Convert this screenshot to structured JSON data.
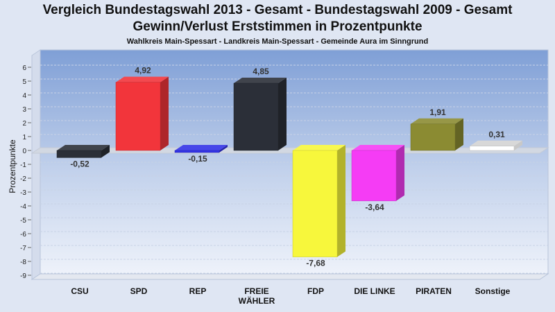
{
  "title_line1": "Vergleich Bundestagswahl 2013 - Gesamt - Bundestagswahl 2009 - Gesamt",
  "title_line2": "Gewinn/Verlust Erststimmen in Prozentpunkte",
  "subtitle": "Wahlkreis Main-Spessart - Landkreis Main-Spessart - Gemeinde Aura im Sinngrund",
  "chart_data": {
    "type": "bar",
    "title": "Vergleich Bundestagswahl 2013 - Gesamt - Bundestagswahl 2009 - Gesamt",
    "subtitle": "Gewinn/Verlust Erststimmen in Prozentpunkte",
    "xlabel": "",
    "ylabel": "Prozentpunkte",
    "ylim": [
      -9,
      6
    ],
    "yticks": [
      6,
      5,
      4,
      3,
      2,
      1,
      0,
      -1,
      -2,
      -3,
      -4,
      -5,
      -6,
      -7,
      -8,
      -9
    ],
    "categories": [
      "CSU",
      "SPD",
      "REP",
      "FREIE WÄHLER",
      "FDP",
      "DIE LINKE",
      "PIRATEN",
      "Sonstige"
    ],
    "category_labels": [
      [
        "CSU"
      ],
      [
        "SPD"
      ],
      [
        "REP"
      ],
      [
        "FREIE",
        "WÄHLER"
      ],
      [
        "FDP"
      ],
      [
        "DIE LINKE"
      ],
      [
        "PIRATEN"
      ],
      [
        "Sonstige"
      ]
    ],
    "values": [
      -0.52,
      4.92,
      -0.15,
      4.85,
      -7.68,
      -3.64,
      1.91,
      0.31
    ],
    "value_labels": [
      "-0,52",
      "4,92",
      "-0,15",
      "4,85",
      "-7,68",
      "-3,64",
      "1,91",
      "0,31"
    ],
    "colors": [
      "#2b2f38",
      "#f2353b",
      "#3232e6",
      "#2b2f38",
      "#f7f73c",
      "#f53cf5",
      "#8b8b32",
      "#ffffff"
    ],
    "grid": true,
    "legend": "none"
  }
}
